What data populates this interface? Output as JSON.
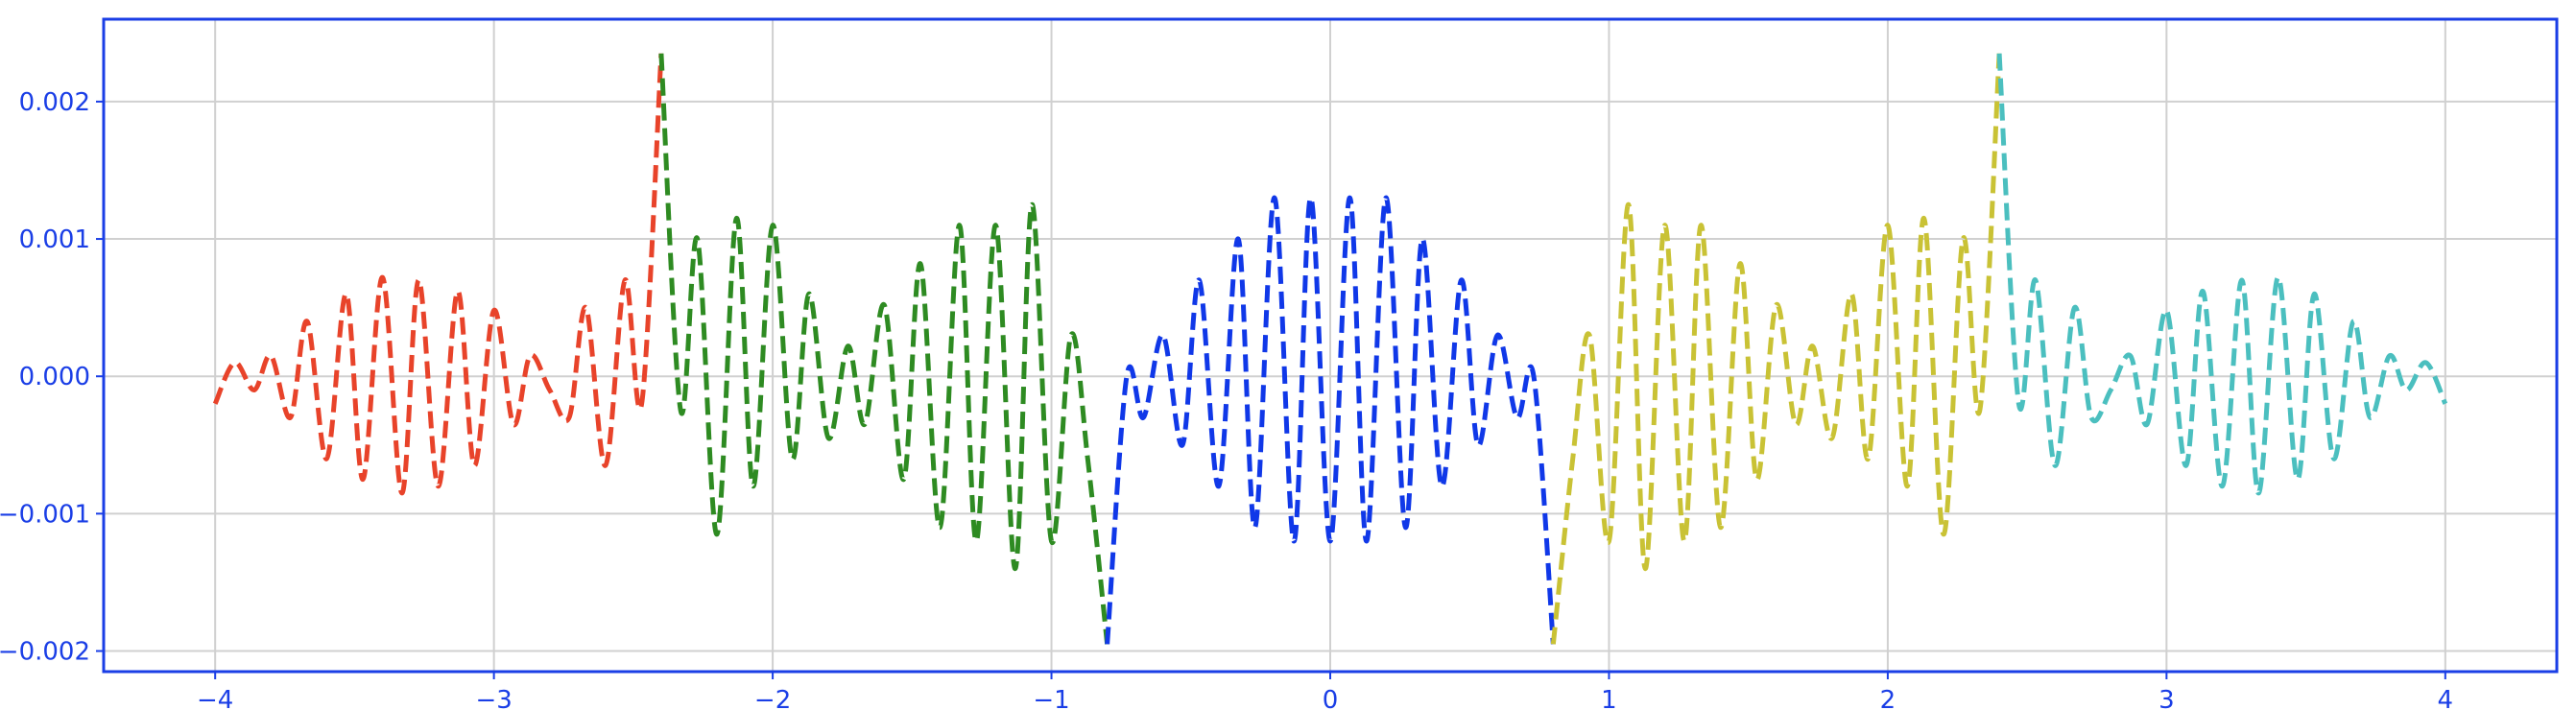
{
  "chart_data": {
    "type": "line",
    "title": "",
    "xlabel": "",
    "ylabel": "",
    "xlim": [
      -4.4,
      4.4
    ],
    "ylim": [
      -0.00215,
      0.0026
    ],
    "x_ticks": [
      -4,
      -3,
      -2,
      -1,
      0,
      1,
      2,
      3,
      4
    ],
    "x_tick_labels": [
      "−4",
      "−3",
      "−2",
      "−1",
      "0",
      "1",
      "2",
      "3",
      "4"
    ],
    "y_ticks": [
      -0.002,
      -0.001,
      0.0,
      0.001,
      0.002
    ],
    "y_tick_labels": [
      "−0.002",
      "−0.001",
      "0.000",
      "0.001",
      "0.002"
    ],
    "grid": true,
    "line_style": "dashed",
    "axis_color": "#1a3ee6",
    "grid_color": "#d0d0d0",
    "series": [
      {
        "color": "#e8432a",
        "x_range": [
          -4.0,
          -2.4
        ],
        "points": [
          [
            -4.0,
            -0.0002
          ],
          [
            -3.93,
            0.0001
          ],
          [
            -3.86,
            -0.0001
          ],
          [
            -3.8,
            0.00015
          ],
          [
            -3.73,
            -0.0003
          ],
          [
            -3.67,
            0.0004
          ],
          [
            -3.6,
            -0.0006
          ],
          [
            -3.53,
            0.0006
          ],
          [
            -3.47,
            -0.00075
          ],
          [
            -3.4,
            0.00072
          ],
          [
            -3.33,
            -0.00085
          ],
          [
            -3.27,
            0.0007
          ],
          [
            -3.2,
            -0.0008
          ],
          [
            -3.13,
            0.00062
          ],
          [
            -3.07,
            -0.00065
          ],
          [
            -3.0,
            0.00048
          ],
          [
            -2.93,
            -0.00035
          ],
          [
            -2.87,
            0.00015
          ],
          [
            -2.8,
            -0.0001
          ],
          [
            -2.73,
            -0.0003
          ],
          [
            -2.67,
            0.0005
          ],
          [
            -2.6,
            -0.00065
          ],
          [
            -2.53,
            0.0007
          ],
          [
            -2.47,
            -0.0002
          ],
          [
            -2.4,
            0.00235
          ]
        ]
      },
      {
        "color": "#2e8b22",
        "x_range": [
          -2.4,
          -0.8
        ],
        "points": [
          [
            -2.4,
            0.00235
          ],
          [
            -2.33,
            -0.00025
          ],
          [
            -2.27,
            0.001
          ],
          [
            -2.2,
            -0.00115
          ],
          [
            -2.13,
            0.00115
          ],
          [
            -2.07,
            -0.0008
          ],
          [
            -2.0,
            0.0011
          ],
          [
            -1.93,
            -0.0006
          ],
          [
            -1.87,
            0.0006
          ],
          [
            -1.8,
            -0.00045
          ],
          [
            -1.73,
            0.00022
          ],
          [
            -1.67,
            -0.00035
          ],
          [
            -1.6,
            0.00052
          ],
          [
            -1.53,
            -0.00075
          ],
          [
            -1.47,
            0.00082
          ],
          [
            -1.4,
            -0.0011
          ],
          [
            -1.33,
            0.0011
          ],
          [
            -1.27,
            -0.0012
          ],
          [
            -1.2,
            0.0011
          ],
          [
            -1.13,
            -0.0014
          ],
          [
            -1.07,
            0.00125
          ],
          [
            -1.0,
            -0.0012
          ],
          [
            -0.93,
            0.0003
          ],
          [
            -0.87,
            -0.0006
          ],
          [
            -0.8,
            -0.00195
          ]
        ]
      },
      {
        "color": "#1038e8",
        "x_range": [
          -0.8,
          0.8
        ],
        "points": [
          [
            -0.8,
            -0.00195
          ],
          [
            -0.73,
            0.0
          ],
          [
            -0.67,
            -0.0003
          ],
          [
            -0.6,
            0.0003
          ],
          [
            -0.53,
            -0.0005
          ],
          [
            -0.47,
            0.0007
          ],
          [
            -0.4,
            -0.0008
          ],
          [
            -0.33,
            0.001
          ],
          [
            -0.27,
            -0.0011
          ],
          [
            -0.2,
            0.0013
          ],
          [
            -0.13,
            -0.0012
          ],
          [
            -0.07,
            0.0013
          ],
          [
            0.0,
            -0.0012
          ],
          [
            0.07,
            0.0013
          ],
          [
            0.13,
            -0.0012
          ],
          [
            0.2,
            0.0013
          ],
          [
            0.27,
            -0.0011
          ],
          [
            0.33,
            0.001
          ],
          [
            0.4,
            -0.0008
          ],
          [
            0.47,
            0.0007
          ],
          [
            0.53,
            -0.0005
          ],
          [
            0.6,
            0.0003
          ],
          [
            0.67,
            -0.0003
          ],
          [
            0.73,
            0.0
          ],
          [
            0.8,
            -0.00195
          ]
        ]
      },
      {
        "color": "#c9c235",
        "x_range": [
          0.8,
          2.4
        ],
        "points": [
          [
            0.8,
            -0.00195
          ],
          [
            0.87,
            -0.0006
          ],
          [
            0.93,
            0.0003
          ],
          [
            1.0,
            -0.0012
          ],
          [
            1.07,
            0.00125
          ],
          [
            1.13,
            -0.0014
          ],
          [
            1.2,
            0.0011
          ],
          [
            1.27,
            -0.0012
          ],
          [
            1.33,
            0.0011
          ],
          [
            1.4,
            -0.0011
          ],
          [
            1.47,
            0.00082
          ],
          [
            1.53,
            -0.00075
          ],
          [
            1.6,
            0.00052
          ],
          [
            1.67,
            -0.00035
          ],
          [
            1.73,
            0.00022
          ],
          [
            1.8,
            -0.00045
          ],
          [
            1.87,
            0.0006
          ],
          [
            1.93,
            -0.0006
          ],
          [
            2.0,
            0.0011
          ],
          [
            2.07,
            -0.0008
          ],
          [
            2.13,
            0.00115
          ],
          [
            2.2,
            -0.00115
          ],
          [
            2.27,
            0.001
          ],
          [
            2.33,
            -0.00025
          ],
          [
            2.4,
            0.00235
          ]
        ]
      },
      {
        "color": "#4bbfbf",
        "x_range": [
          2.4,
          4.0
        ],
        "points": [
          [
            2.4,
            0.00235
          ],
          [
            2.47,
            -0.0002
          ],
          [
            2.53,
            0.0007
          ],
          [
            2.6,
            -0.00065
          ],
          [
            2.67,
            0.0005
          ],
          [
            2.73,
            -0.0003
          ],
          [
            2.8,
            -0.0001
          ],
          [
            2.87,
            0.00015
          ],
          [
            2.93,
            -0.00035
          ],
          [
            3.0,
            0.00048
          ],
          [
            3.07,
            -0.00065
          ],
          [
            3.13,
            0.00062
          ],
          [
            3.2,
            -0.0008
          ],
          [
            3.27,
            0.0007
          ],
          [
            3.33,
            -0.00085
          ],
          [
            3.4,
            0.00072
          ],
          [
            3.47,
            -0.00075
          ],
          [
            3.53,
            0.0006
          ],
          [
            3.6,
            -0.0006
          ],
          [
            3.67,
            0.0004
          ],
          [
            3.73,
            -0.0003
          ],
          [
            3.8,
            0.00015
          ],
          [
            3.86,
            -0.0001
          ],
          [
            3.93,
            0.0001
          ],
          [
            4.0,
            -0.0002
          ]
        ]
      }
    ]
  }
}
